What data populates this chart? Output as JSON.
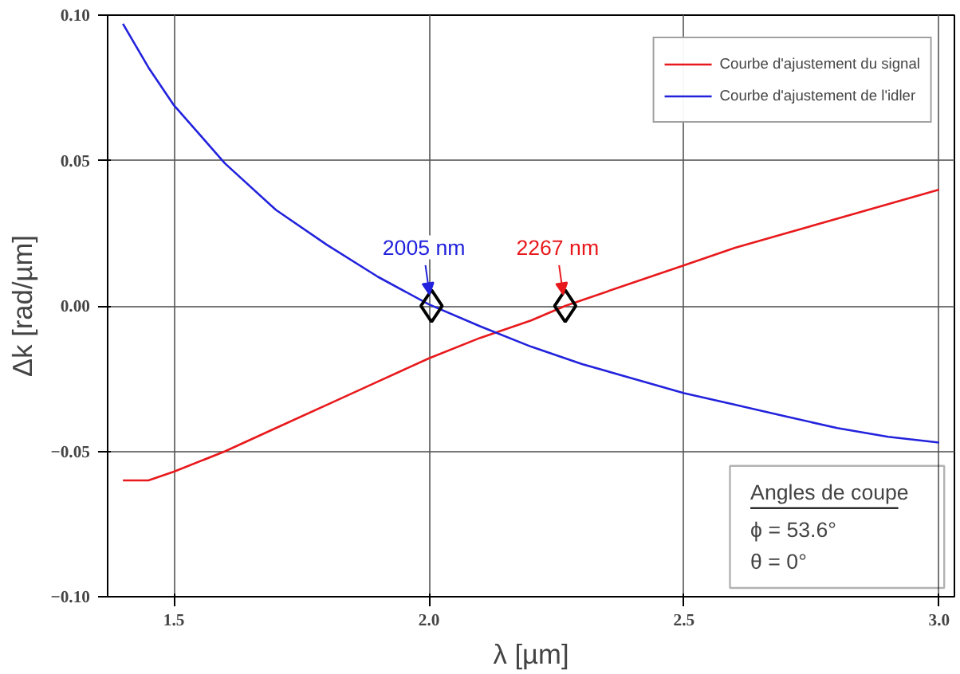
{
  "chart_data": {
    "type": "line",
    "xlabel": "λ [µm]",
    "ylabel": "Δk [rad/µm]",
    "xlim": [
      1.37,
      3.03
    ],
    "ylim": [
      -0.1,
      0.1
    ],
    "xticks": [
      {
        "value": 1.5,
        "label": "1.5"
      },
      {
        "value": 2.0,
        "label": "2.0"
      },
      {
        "value": 2.5,
        "label": "2.5"
      },
      {
        "value": 3.0,
        "label": "3.0"
      }
    ],
    "yticks": [
      {
        "value": -0.1,
        "label": "−0.10"
      },
      {
        "value": -0.05,
        "label": "−0.05"
      },
      {
        "value": 0,
        "label": "0.00"
      },
      {
        "value": 0.05,
        "label": "0.05"
      },
      {
        "value": 0.1,
        "label": "0.10"
      }
    ],
    "grid": true,
    "legend": "top right",
    "marker": "none",
    "line_style": "solid",
    "series": [
      {
        "name": "Courbe d'ajustement du signal",
        "color": "#e8191c",
        "x": [
          1.4,
          1.45,
          1.5,
          1.6,
          1.7,
          1.8,
          1.9,
          2.0,
          2.1,
          2.2,
          2.267,
          2.3,
          2.4,
          2.5,
          2.6,
          2.7,
          2.8,
          2.9,
          3.0
        ],
        "values": [
          -0.06,
          -0.06,
          -0.057,
          -0.05,
          -0.042,
          -0.034,
          -0.026,
          -0.018,
          -0.011,
          -0.005,
          0,
          0.002,
          0.008,
          0.014,
          0.02,
          0.025,
          0.03,
          0.035,
          0.04
        ]
      },
      {
        "name": "Courbe d'ajustement de l'idler",
        "color": "#2222dd",
        "x": [
          1.4,
          1.45,
          1.5,
          1.6,
          1.7,
          1.8,
          1.9,
          2.0,
          2.1,
          2.2,
          2.3,
          2.4,
          2.5,
          2.6,
          2.7,
          2.8,
          2.9,
          3.0
        ],
        "values": [
          0.097,
          0.082,
          0.069,
          0.049,
          0.033,
          0.021,
          0.01,
          0.0005,
          -0.007,
          -0.014,
          -0.02,
          -0.025,
          -0.03,
          -0.034,
          -0.038,
          -0.042,
          -0.045,
          -0.047
        ]
      },
      {
        "type": "scatter",
        "marker": "diamond",
        "color": "#000000",
        "x": [
          2.005,
          2.267
        ],
        "values": [
          0,
          0
        ]
      }
    ],
    "annotations": [
      {
        "text": "2005 nm",
        "x": 2.005,
        "y": 0
      },
      {
        "text": "2267 nm",
        "x": 2.267,
        "y": 0
      },
      "Angles de coupe",
      "ϕ = 53.6°",
      "θ = 0°"
    ]
  }
}
